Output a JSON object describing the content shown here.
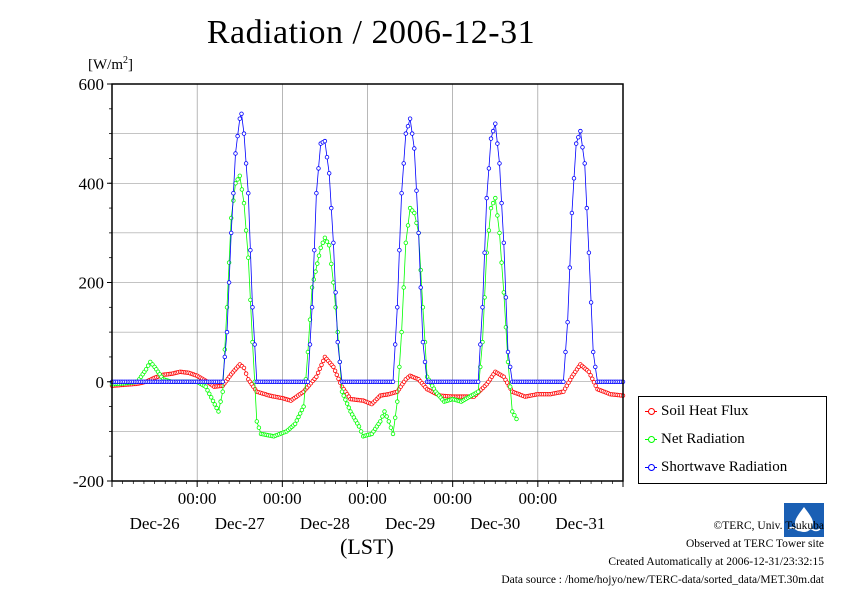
{
  "chart_data": {
    "type": "line",
    "title": "Radiation / 2006-12-31",
    "ylabel": "[W/m2]",
    "xlabel": "(LST)",
    "ylim": [
      -200,
      600
    ],
    "yticks": [
      -200,
      0,
      200,
      400,
      600
    ],
    "xlim": [
      -1.0,
      5.0
    ],
    "x_unit": "days from 2006-12-27 00:00 LST",
    "time_ticks": [
      "00:00",
      "00:00",
      "00:00",
      "00:00",
      "00:00"
    ],
    "date_labels": [
      "Dec-26",
      "Dec-27",
      "Dec-28",
      "Dec-29",
      "Dec-30",
      "Dec-31"
    ],
    "grid": true,
    "legend_position": "right-bottom",
    "series": [
      {
        "name": "Soil Heat Flux",
        "color": "#ff0000",
        "points": [
          [
            -1.0,
            -8
          ],
          [
            -0.85,
            -6
          ],
          [
            -0.7,
            -4
          ],
          [
            -0.6,
            0
          ],
          [
            -0.5,
            8
          ],
          [
            -0.4,
            14
          ],
          [
            -0.3,
            16
          ],
          [
            -0.2,
            20
          ],
          [
            -0.1,
            18
          ],
          [
            0.0,
            12
          ],
          [
            0.1,
            2
          ],
          [
            0.2,
            -10
          ],
          [
            0.3,
            -8
          ],
          [
            0.4,
            15
          ],
          [
            0.5,
            35
          ],
          [
            0.55,
            28
          ],
          [
            0.6,
            5
          ],
          [
            0.7,
            -20
          ],
          [
            0.85,
            -28
          ],
          [
            1.0,
            -33
          ],
          [
            1.1,
            -38
          ],
          [
            1.25,
            -20
          ],
          [
            1.4,
            10
          ],
          [
            1.5,
            50
          ],
          [
            1.6,
            30
          ],
          [
            1.7,
            -10
          ],
          [
            1.8,
            -35
          ],
          [
            1.95,
            -38
          ],
          [
            2.05,
            -45
          ],
          [
            2.15,
            -28
          ],
          [
            2.25,
            -25
          ],
          [
            2.35,
            -20
          ],
          [
            2.45,
            5
          ],
          [
            2.5,
            12
          ],
          [
            2.6,
            5
          ],
          [
            2.7,
            -15
          ],
          [
            2.85,
            -28
          ],
          [
            3.0,
            -30
          ],
          [
            3.1,
            -30
          ],
          [
            3.25,
            -30
          ],
          [
            3.4,
            -5
          ],
          [
            3.5,
            20
          ],
          [
            3.6,
            10
          ],
          [
            3.7,
            -20
          ],
          [
            3.85,
            -30
          ],
          [
            4.0,
            -25
          ],
          [
            4.15,
            -25
          ],
          [
            4.3,
            -20
          ],
          [
            4.4,
            10
          ],
          [
            4.5,
            35
          ],
          [
            4.6,
            20
          ],
          [
            4.7,
            -15
          ],
          [
            4.85,
            -25
          ],
          [
            5.0,
            -28
          ]
        ]
      },
      {
        "name": "Net Radiation",
        "color": "#00ff00",
        "points": [
          [
            -1.0,
            -5
          ],
          [
            -0.85,
            -3
          ],
          [
            -0.7,
            0
          ],
          [
            -0.6,
            25
          ],
          [
            -0.55,
            40
          ],
          [
            -0.5,
            30
          ],
          [
            -0.4,
            5
          ],
          [
            -0.3,
            0
          ],
          [
            -0.2,
            0
          ],
          [
            -0.05,
            0
          ],
          [
            0.0,
            0
          ],
          [
            0.1,
            -10
          ],
          [
            0.25,
            -60
          ],
          [
            0.3,
            -20
          ],
          [
            0.35,
            150
          ],
          [
            0.4,
            330
          ],
          [
            0.45,
            400
          ],
          [
            0.5,
            415
          ],
          [
            0.55,
            360
          ],
          [
            0.6,
            250
          ],
          [
            0.65,
            80
          ],
          [
            0.7,
            -80
          ],
          [
            0.75,
            -105
          ],
          [
            0.9,
            -110
          ],
          [
            1.05,
            -100
          ],
          [
            1.15,
            -85
          ],
          [
            1.25,
            -50
          ],
          [
            1.3,
            60
          ],
          [
            1.35,
            190
          ],
          [
            1.45,
            270
          ],
          [
            1.5,
            290
          ],
          [
            1.55,
            275
          ],
          [
            1.6,
            200
          ],
          [
            1.65,
            100
          ],
          [
            1.7,
            -20
          ],
          [
            1.8,
            -60
          ],
          [
            1.9,
            -90
          ],
          [
            1.95,
            -110
          ],
          [
            2.05,
            -105
          ],
          [
            2.15,
            -80
          ],
          [
            2.2,
            -60
          ],
          [
            2.25,
            -80
          ],
          [
            2.3,
            -105
          ],
          [
            2.35,
            -40
          ],
          [
            2.4,
            100
          ],
          [
            2.45,
            280
          ],
          [
            2.5,
            350
          ],
          [
            2.55,
            340
          ],
          [
            2.6,
            300
          ],
          [
            2.65,
            150
          ],
          [
            2.7,
            10
          ],
          [
            2.8,
            -20
          ],
          [
            2.9,
            -40
          ],
          [
            3.0,
            -35
          ],
          [
            3.1,
            -40
          ],
          [
            3.2,
            -30
          ],
          [
            3.3,
            -20
          ],
          [
            3.35,
            80
          ],
          [
            3.4,
            260
          ],
          [
            3.45,
            350
          ],
          [
            3.5,
            370
          ],
          [
            3.55,
            300
          ],
          [
            3.6,
            180
          ],
          [
            3.65,
            40
          ],
          [
            3.7,
            -60
          ],
          [
            3.75,
            -75
          ]
        ]
      },
      {
        "name": "Shortwave Radiation",
        "color": "#0000ff",
        "points": [
          [
            -1.0,
            0
          ],
          [
            0.0,
            0
          ],
          [
            0.3,
            0
          ],
          [
            0.35,
            100
          ],
          [
            0.4,
            300
          ],
          [
            0.45,
            460
          ],
          [
            0.5,
            530
          ],
          [
            0.52,
            540
          ],
          [
            0.55,
            500
          ],
          [
            0.6,
            380
          ],
          [
            0.65,
            150
          ],
          [
            0.7,
            0
          ],
          [
            1.0,
            0
          ],
          [
            1.3,
            0
          ],
          [
            1.35,
            150
          ],
          [
            1.4,
            380
          ],
          [
            1.45,
            480
          ],
          [
            1.5,
            485
          ],
          [
            1.55,
            420
          ],
          [
            1.6,
            280
          ],
          [
            1.65,
            80
          ],
          [
            1.7,
            0
          ],
          [
            2.0,
            0
          ],
          [
            2.3,
            0
          ],
          [
            2.35,
            150
          ],
          [
            2.4,
            380
          ],
          [
            2.45,
            500
          ],
          [
            2.5,
            530
          ],
          [
            2.55,
            470
          ],
          [
            2.6,
            300
          ],
          [
            2.65,
            80
          ],
          [
            2.7,
            0
          ],
          [
            3.0,
            0
          ],
          [
            3.3,
            0
          ],
          [
            3.35,
            150
          ],
          [
            3.4,
            370
          ],
          [
            3.45,
            490
          ],
          [
            3.5,
            520
          ],
          [
            3.55,
            440
          ],
          [
            3.6,
            280
          ],
          [
            3.65,
            60
          ],
          [
            3.7,
            0
          ],
          [
            4.0,
            0
          ],
          [
            4.3,
            0
          ],
          [
            4.35,
            120
          ],
          [
            4.4,
            340
          ],
          [
            4.45,
            480
          ],
          [
            4.5,
            505
          ],
          [
            4.55,
            440
          ],
          [
            4.6,
            260
          ],
          [
            4.65,
            60
          ],
          [
            4.7,
            0
          ],
          [
            5.0,
            0
          ]
        ]
      }
    ]
  },
  "credits": {
    "copyright": "©TERC, Univ. Tsukuba",
    "site": "Observed at TERC Tower site",
    "created": "Created Automatically at 2006-12-31/23:32:15",
    "source": "Data source : /home/hojyo/new/TERC-data/sorted_data/MET.30m.dat",
    "logo_text": "TERC"
  }
}
